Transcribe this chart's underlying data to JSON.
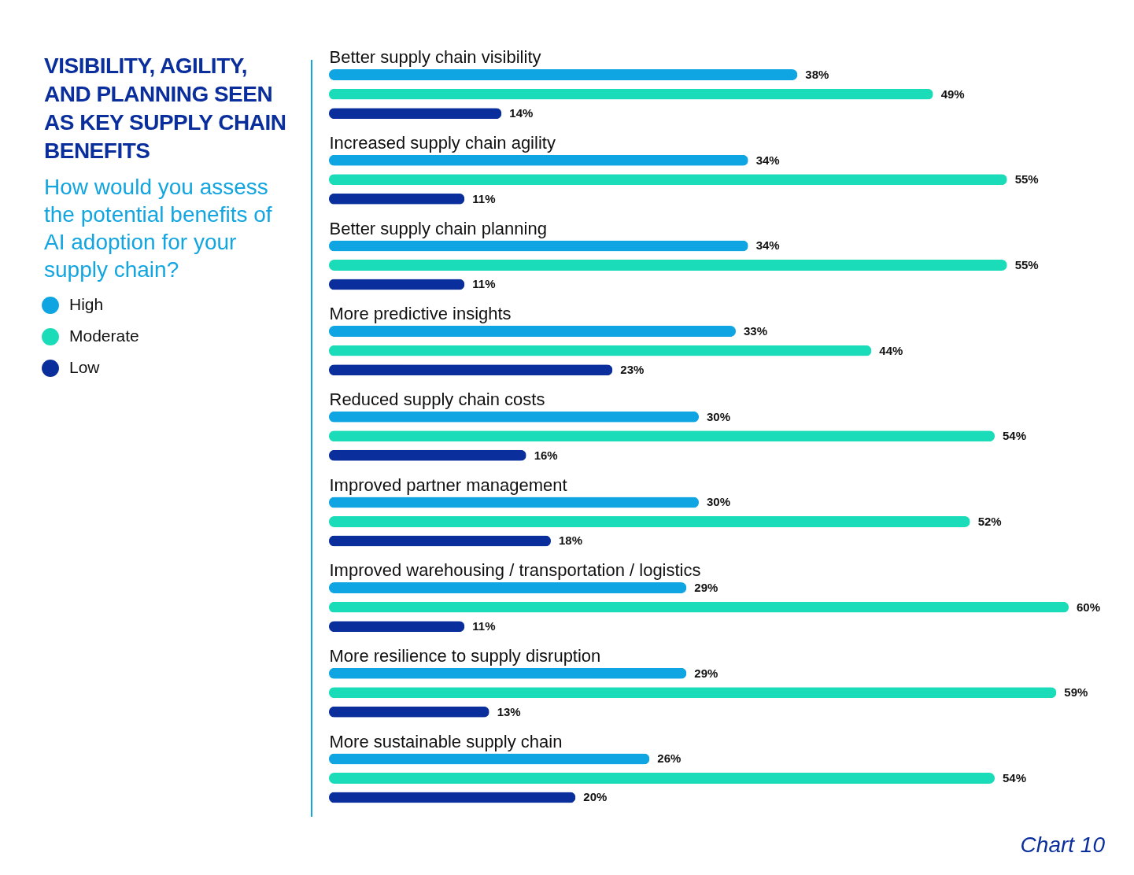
{
  "chart_data": {
    "type": "bar",
    "orientation": "horizontal",
    "title": "VISIBILITY, AGILITY, AND PLANNING SEEN AS KEY SUPPLY CHAIN BENEFITS",
    "subtitle": "How would you assess the potential benefits of AI adoption for your supply chain?",
    "categories": [
      "Better supply chain visibility",
      "Increased supply chain agility",
      "Better supply chain planning",
      "More predictive insights",
      "Reduced supply chain costs",
      "Improved partner management",
      "Improved warehousing / transportation / logistics",
      "More resilience to supply disruption",
      "More sustainable supply chain"
    ],
    "series": [
      {
        "name": "High",
        "color": "#0ea5e2",
        "values": [
          38,
          34,
          34,
          33,
          30,
          30,
          29,
          29,
          26
        ],
        "value_labels": [
          "38%",
          "34%",
          "34%",
          "33%",
          "30%",
          "30%",
          "29%",
          "29%",
          "26%"
        ]
      },
      {
        "name": "Moderate",
        "color": "#1adcb8",
        "values": [
          49,
          55,
          55,
          44,
          54,
          52,
          60,
          59,
          54
        ],
        "value_labels": [
          "49%",
          "55%",
          "55%",
          "44%",
          "54%",
          "52%",
          "60%",
          "59%",
          "54%"
        ]
      },
      {
        "name": "Low",
        "color": "#0a2f9c",
        "values": [
          14,
          11,
          11,
          23,
          16,
          18,
          11,
          13,
          20
        ],
        "value_labels": [
          "14%",
          "11%",
          "11%",
          "23%",
          "16%",
          "18%",
          "11%",
          "13%",
          "20%"
        ]
      }
    ],
    "legend": "left",
    "grid": false,
    "annotations": [
      "Chart 10"
    ]
  }
}
